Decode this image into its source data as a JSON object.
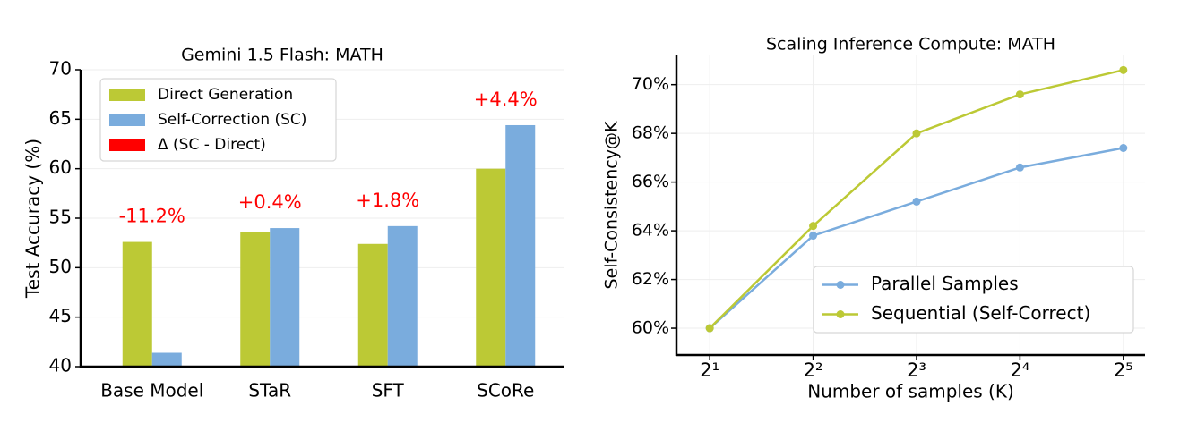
{
  "chart_data": [
    {
      "type": "bar",
      "title": "Gemini 1.5 Flash: MATH",
      "y_label": "Test Accuracy (%)",
      "categories": [
        "Base Model",
        "STaR",
        "SFT",
        "SCoRe"
      ],
      "series": [
        {
          "name": "Direct Generation",
          "color": "#bcc935",
          "values": [
            52.6,
            53.6,
            52.4,
            60.0
          ]
        },
        {
          "name": "Self-Correction (SC)",
          "color": "#7aacdd",
          "values": [
            41.4,
            54.0,
            54.2,
            64.4
          ]
        },
        {
          "name": "Δ (SC - Direct)",
          "color": "#ff0000",
          "values": [
            -11.2,
            0.4,
            1.8,
            4.4
          ],
          "value_labels": [
            "-11.2%",
            "+0.4%",
            "+1.8%",
            "+4.4%"
          ]
        }
      ],
      "ylim": [
        40,
        70
      ],
      "yticks": [
        40,
        45,
        50,
        55,
        60,
        65,
        70
      ],
      "grid": true,
      "legend": "upper left"
    },
    {
      "type": "line",
      "title": "Scaling Inference Compute: MATH",
      "x_label": "Number of samples (K)",
      "y_label": "Self-Consistency@K",
      "x": [
        2,
        4,
        8,
        16,
        32
      ],
      "xscale": "log",
      "series": [
        {
          "name": "Parallel Samples",
          "color": "#7aacdd",
          "values": [
            60.0,
            63.8,
            65.2,
            66.6,
            67.4
          ]
        },
        {
          "name": "Sequential (Self-Correct)",
          "color": "#bcc935",
          "values": [
            60.0,
            64.2,
            68.0,
            69.6,
            70.6
          ]
        }
      ],
      "xlim": [
        1.6,
        37
      ],
      "xticks": [
        {
          "value": 2,
          "label": "2¹"
        },
        {
          "value": 4,
          "label": "2²"
        },
        {
          "value": 8,
          "label": "2³"
        },
        {
          "value": 16,
          "label": "2⁴"
        },
        {
          "value": 32,
          "label": "2⁵"
        }
      ],
      "ylim": [
        58.9,
        71.2
      ],
      "yticks": [
        {
          "value": 60,
          "label": "60%"
        },
        {
          "value": 62,
          "label": "62%"
        },
        {
          "value": 64,
          "label": "64%"
        },
        {
          "value": 66,
          "label": "66%"
        },
        {
          "value": 68,
          "label": "68%"
        },
        {
          "value": 70,
          "label": "70%"
        }
      ],
      "grid": true,
      "legend": "lower right"
    }
  ]
}
